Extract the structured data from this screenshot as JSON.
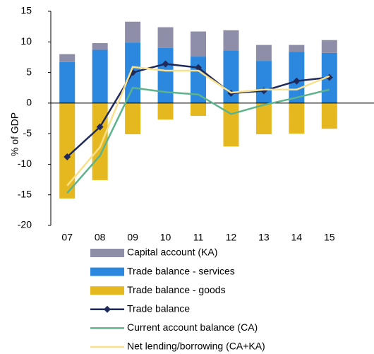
{
  "chart_data": {
    "type": "bar",
    "y_label": "% of GDP",
    "categories": [
      "07",
      "08",
      "09",
      "10",
      "11",
      "12",
      "13",
      "14",
      "15"
    ],
    "ylim": [
      -20,
      15
    ],
    "yticks": [
      -20,
      -15,
      -10,
      -5,
      0,
      5,
      10,
      15
    ],
    "series": [
      {
        "name": "Capital account (KA)",
        "type": "bar",
        "color": "#8e8ea8",
        "values": [
          1.3,
          1.1,
          3.4,
          3.4,
          4.1,
          3.3,
          2.6,
          1.1,
          2.1
        ]
      },
      {
        "name": "Trade balance - services",
        "type": "bar",
        "color": "#2b88de",
        "values": [
          6.7,
          8.7,
          9.9,
          9.0,
          7.6,
          8.6,
          6.9,
          8.4,
          8.2
        ]
      },
      {
        "name": "Trade balance - goods",
        "type": "bar",
        "color": "#e6b820",
        "values": [
          -15.6,
          -12.6,
          -5.1,
          -2.7,
          -2.1,
          -7.1,
          -5.1,
          -5.0,
          -4.2
        ]
      },
      {
        "name": "Trade balance",
        "type": "line",
        "marker": "diamond",
        "color": "#1f2a5c",
        "values": [
          -8.8,
          -3.9,
          5.0,
          6.4,
          5.8,
          1.6,
          2.0,
          3.6,
          4.2
        ]
      },
      {
        "name": "Current account balance (CA)",
        "type": "line",
        "color": "#5db38c",
        "values": [
          -14.7,
          -8.6,
          2.5,
          1.8,
          1.4,
          -1.8,
          -0.3,
          0.9,
          2.2
        ]
      },
      {
        "name": "Net lending/borrowing (CA+KA)",
        "type": "line",
        "color": "#fbe08c",
        "values": [
          -13.5,
          -7.2,
          5.9,
          5.3,
          5.3,
          1.7,
          2.2,
          2.2,
          4.4
        ]
      }
    ]
  }
}
